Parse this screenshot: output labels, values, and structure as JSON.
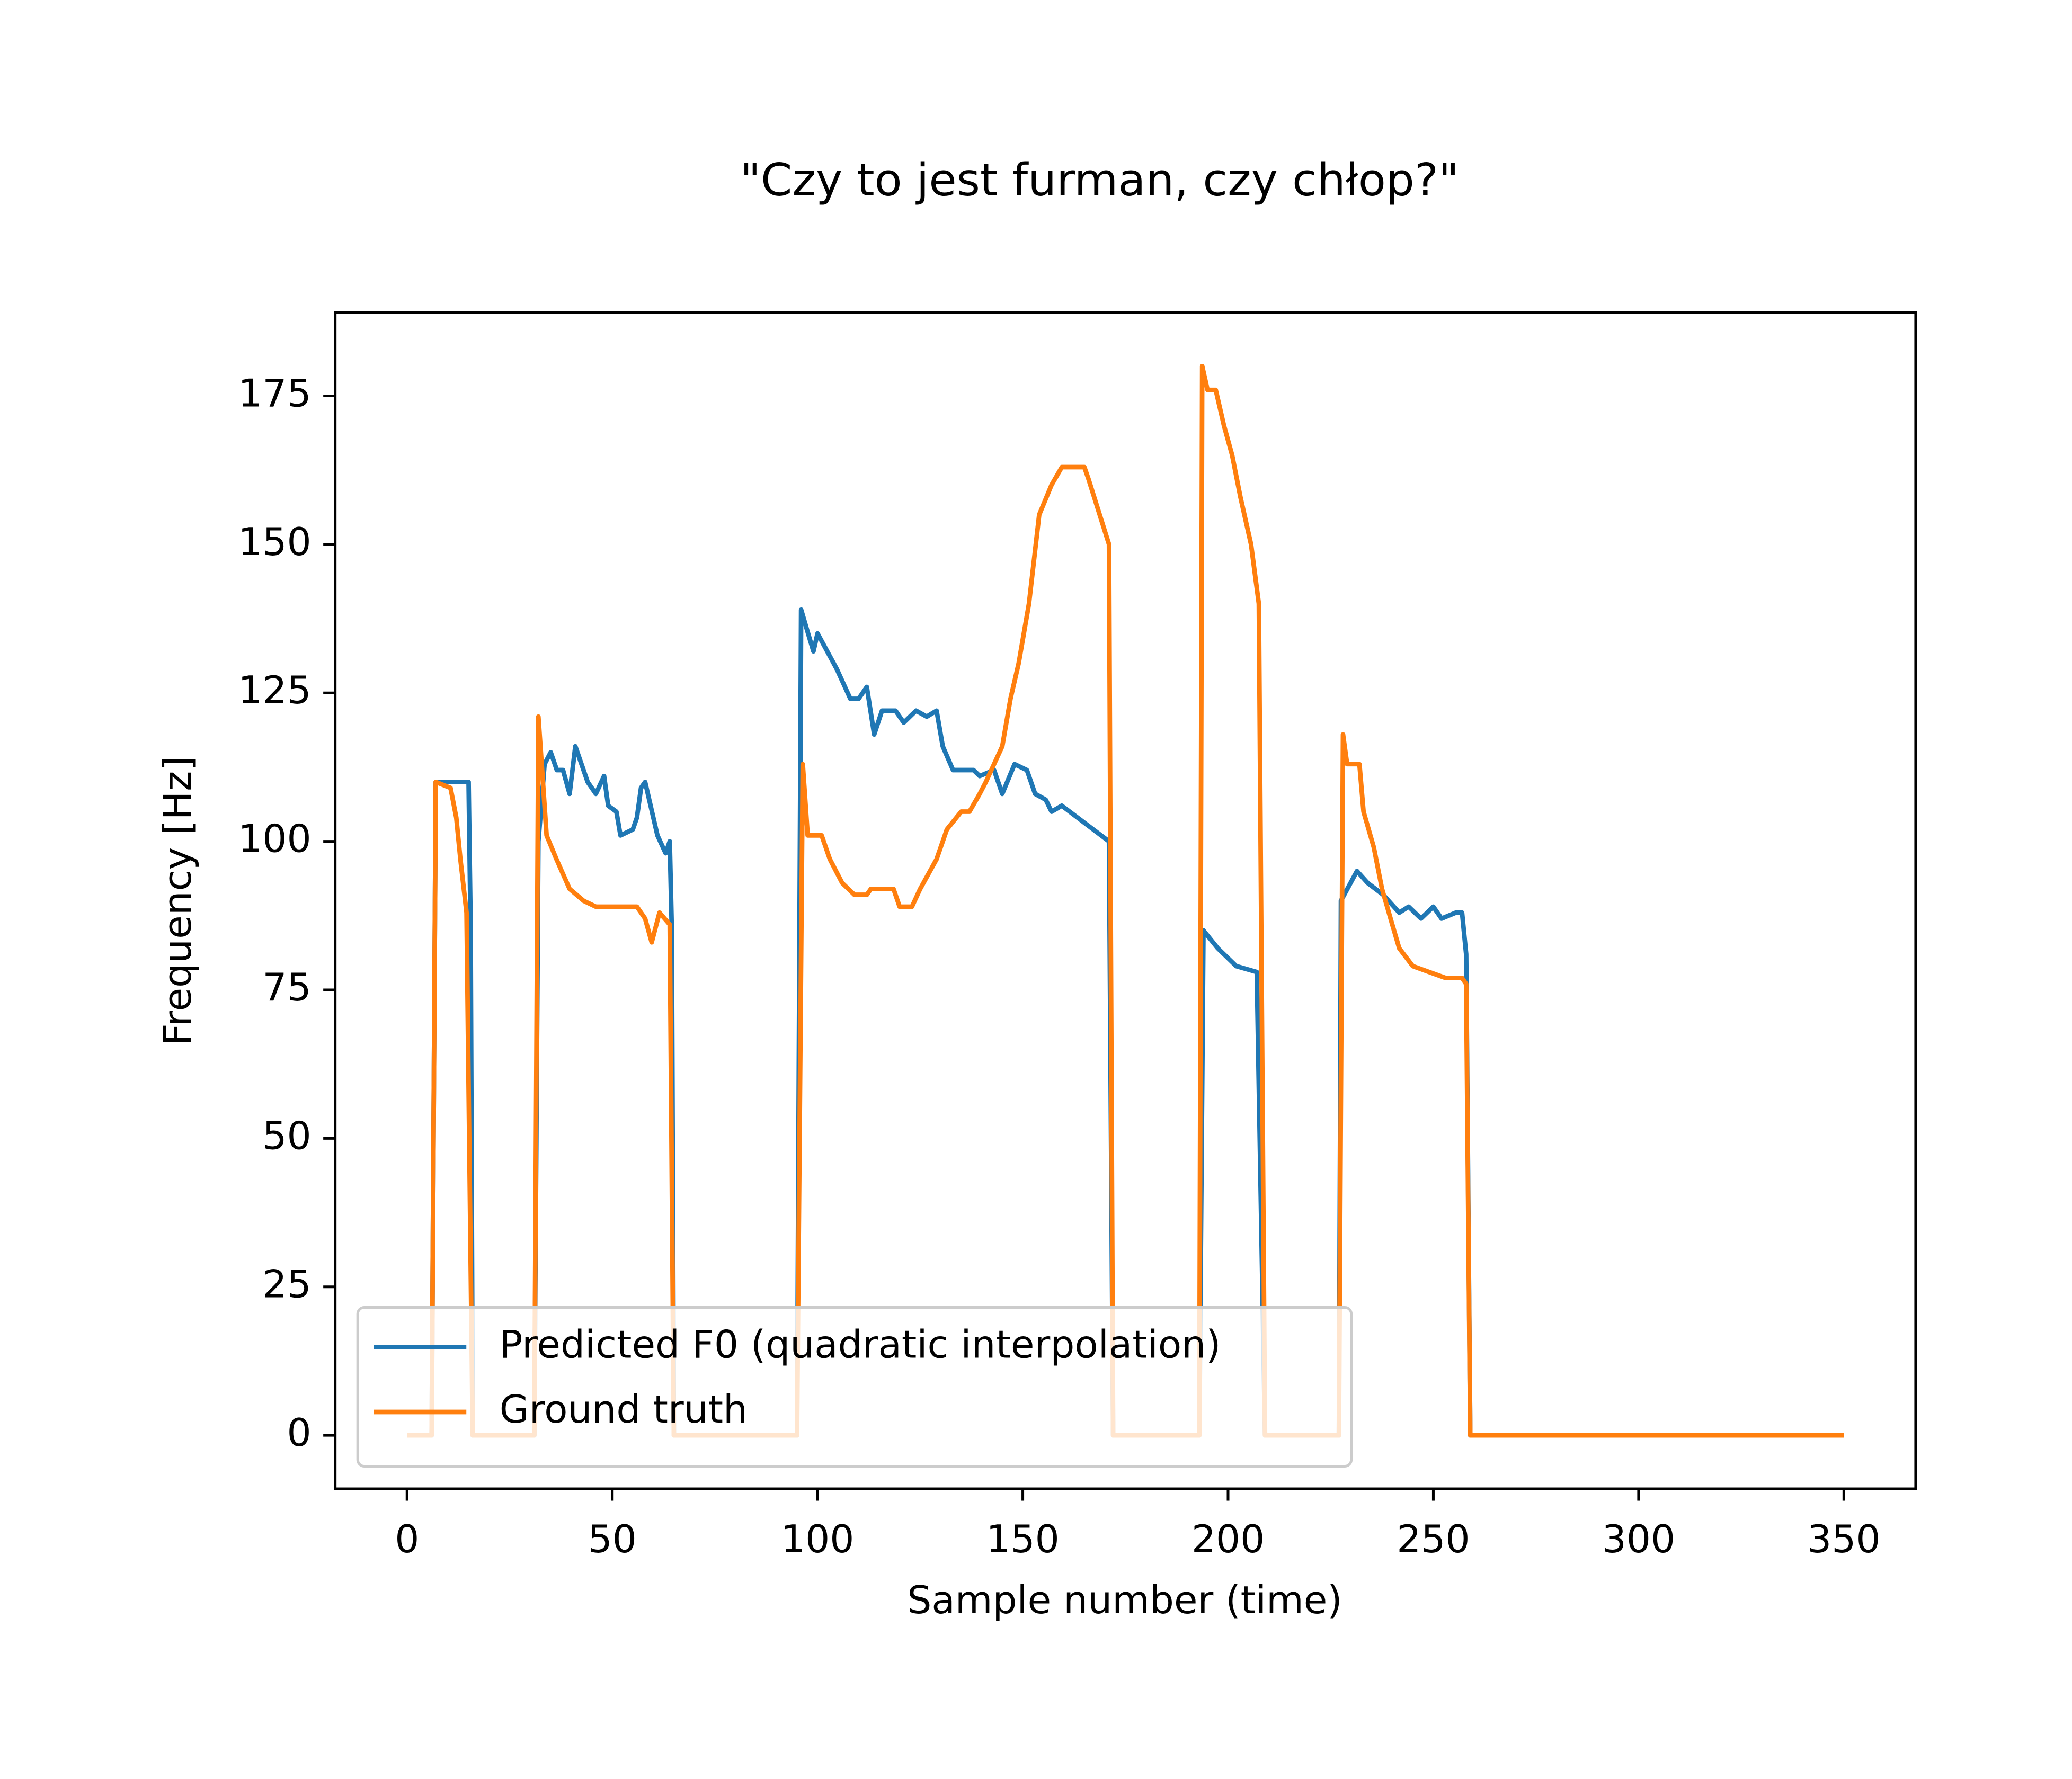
{
  "chart_data": {
    "type": "line",
    "title": "\"Czy to jest furman, czy chłop?\"",
    "x_label": "Sample number (time)",
    "y_label": "Frequency [Hz]",
    "xlim": [
      -17.5,
      367.5
    ],
    "ylim": [
      -9,
      189
    ],
    "xticks": [
      0,
      50,
      100,
      150,
      200,
      250,
      300,
      350
    ],
    "yticks": [
      0,
      25,
      50,
      75,
      100,
      125,
      150,
      175
    ],
    "legend": "lower left",
    "series": [
      {
        "name": "Predicted F0 (quadratic interpolation)",
        "color": "#1f77b4",
        "x": [
          0,
          6,
          7,
          15,
          15.5,
          16,
          31,
          32,
          33.5,
          35,
          36.5,
          38,
          39.6,
          41,
          44,
          46,
          48,
          49,
          51,
          52,
          55,
          56,
          57,
          58,
          61,
          63,
          64,
          64.5,
          65,
          95,
          96,
          97.7,
          99,
          100,
          104.7,
          108,
          110,
          112,
          113.8,
          115.7,
          119,
          121,
          124,
          126.6,
          129,
          130.5,
          133,
          138,
          139.5,
          143,
          145,
          148,
          151,
          153,
          155.6,
          157,
          159.5,
          171,
          172,
          193,
          194,
          197.5,
          202,
          207,
          209,
          227,
          227.5,
          231.4,
          234,
          237.8,
          241.7,
          244,
          247,
          250,
          252,
          255.5,
          257,
          258,
          259,
          350
        ],
        "values": [
          0,
          0,
          110,
          110,
          85,
          0,
          0,
          100,
          113,
          115,
          112,
          112,
          108,
          116,
          110,
          108,
          111,
          106,
          105,
          101,
          102,
          104,
          109,
          110,
          101,
          98,
          100,
          85,
          0,
          0,
          139,
          135,
          132,
          135,
          129,
          124,
          124,
          126,
          118,
          122,
          122,
          120,
          122,
          121,
          122,
          116,
          112,
          112,
          111,
          112,
          108,
          113,
          112,
          108,
          107,
          105,
          106,
          100,
          0,
          0,
          85,
          82,
          79,
          78,
          0,
          0,
          90,
          95,
          93,
          91,
          88,
          89,
          87,
          89,
          87,
          88,
          88,
          81,
          0,
          0
        ]
      },
      {
        "name": "Ground truth",
        "color": "#ff7f0e",
        "x": [
          0,
          6,
          7,
          10.6,
          12,
          13,
          14.5,
          16,
          31,
          32,
          34,
          36.4,
          39.6,
          43,
          46,
          51,
          52.5,
          56,
          58,
          59.6,
          61.5,
          64,
          65,
          95,
          96.4,
          97.6,
          101,
          103,
          106,
          109,
          112,
          113,
          118.5,
          120,
          123,
          125,
          129,
          131.5,
          135,
          137,
          139.5,
          141,
          145,
          147,
          149,
          151.5,
          154,
          157,
          159.5,
          165,
          166,
          171,
          172,
          193,
          193.7,
          195,
          197,
          199,
          201,
          203,
          205.6,
          207.5,
          209,
          227,
          228,
          229,
          232,
          233,
          235.5,
          237.5,
          240,
          241.7,
          245,
          249,
          253,
          257,
          258,
          259,
          350
        ],
        "values": [
          0,
          0,
          110,
          109,
          104,
          97,
          88,
          0,
          0,
          121,
          101,
          97,
          92,
          90,
          89,
          89,
          89,
          89,
          87,
          83,
          88,
          86,
          0,
          0,
          113,
          101,
          101,
          97,
          93,
          91,
          91,
          92,
          92,
          89,
          89,
          92,
          97,
          102,
          105,
          105,
          108,
          110,
          116,
          124,
          130,
          140,
          155,
          160,
          163,
          163,
          161,
          150,
          0,
          0,
          180,
          176,
          176,
          170,
          165,
          158,
          150,
          140,
          0,
          0,
          118,
          113,
          113,
          105,
          99,
          92,
          86,
          82,
          79,
          78,
          77,
          77,
          76,
          0,
          0
        ]
      }
    ]
  }
}
